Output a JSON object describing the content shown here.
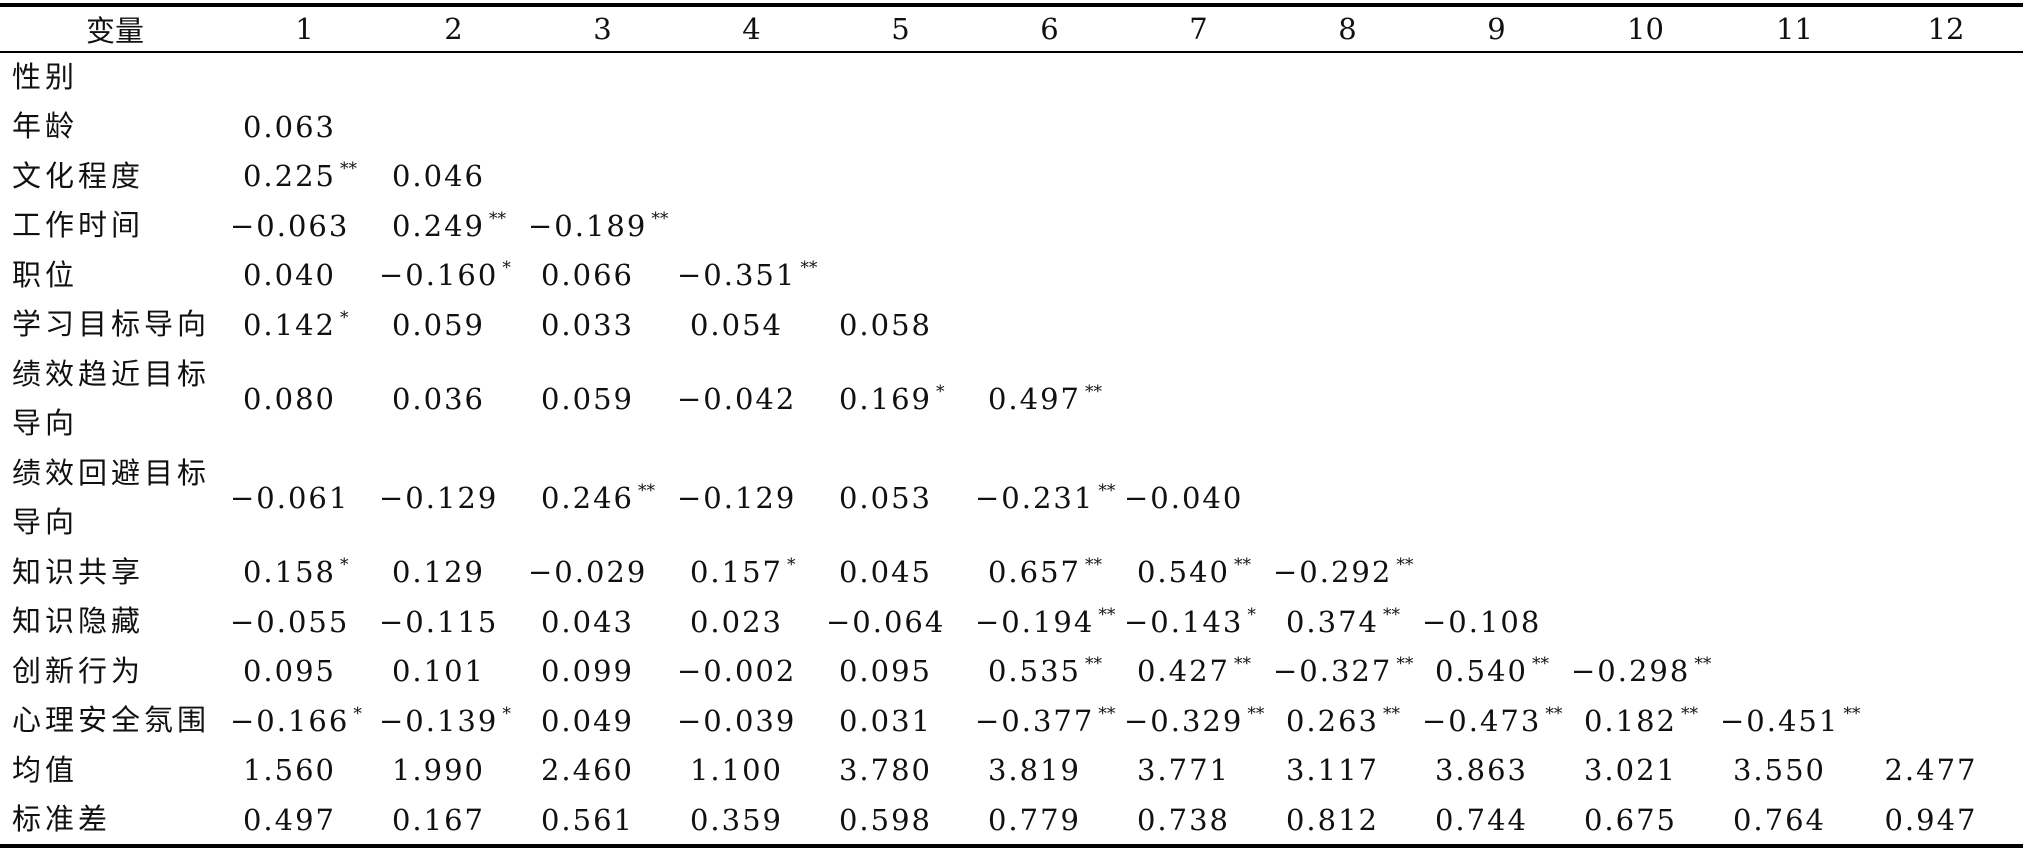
{
  "header": [
    "变量",
    "1",
    "2",
    "3",
    "4",
    "5",
    "6",
    "7",
    "8",
    "9",
    "10",
    "11",
    "12"
  ],
  "rows": [
    {
      "label": "性别",
      "cells": []
    },
    {
      "label": "年龄",
      "cells": [
        {
          "v": "0.063",
          "s": ""
        }
      ]
    },
    {
      "label": "文化程度",
      "cells": [
        {
          "v": "0.225",
          "s": "**"
        },
        {
          "v": "0.046",
          "s": ""
        }
      ]
    },
    {
      "label": "工作时间",
      "cells": [
        {
          "v": "−0.063",
          "s": ""
        },
        {
          "v": "0.249",
          "s": "**"
        },
        {
          "v": "−0.189",
          "s": "**"
        }
      ]
    },
    {
      "label": "职位",
      "cells": [
        {
          "v": "0.040",
          "s": ""
        },
        {
          "v": "−0.160",
          "s": "*"
        },
        {
          "v": "0.066",
          "s": ""
        },
        {
          "v": "−0.351",
          "s": "**"
        }
      ]
    },
    {
      "label": "学习目标导向",
      "cells": [
        {
          "v": "0.142",
          "s": "*"
        },
        {
          "v": "0.059",
          "s": ""
        },
        {
          "v": "0.033",
          "s": ""
        },
        {
          "v": "0.054",
          "s": ""
        },
        {
          "v": "0.058",
          "s": ""
        }
      ]
    },
    {
      "label": "绩效趋近目标导向",
      "tall": true,
      "cells": [
        {
          "v": "0.080",
          "s": ""
        },
        {
          "v": "0.036",
          "s": ""
        },
        {
          "v": "0.059",
          "s": ""
        },
        {
          "v": "−0.042",
          "s": ""
        },
        {
          "v": "0.169",
          "s": "*"
        },
        {
          "v": "0.497",
          "s": "**"
        }
      ]
    },
    {
      "label": "绩效回避目标导向",
      "tall": true,
      "cells": [
        {
          "v": "−0.061",
          "s": ""
        },
        {
          "v": "−0.129",
          "s": ""
        },
        {
          "v": "0.246",
          "s": "**"
        },
        {
          "v": "−0.129",
          "s": ""
        },
        {
          "v": "0.053",
          "s": ""
        },
        {
          "v": "−0.231",
          "s": "**"
        },
        {
          "v": "−0.040",
          "s": ""
        }
      ]
    },
    {
      "label": "知识共享",
      "cells": [
        {
          "v": "0.158",
          "s": "*"
        },
        {
          "v": "0.129",
          "s": ""
        },
        {
          "v": "−0.029",
          "s": ""
        },
        {
          "v": "0.157",
          "s": "*"
        },
        {
          "v": "0.045",
          "s": ""
        },
        {
          "v": "0.657",
          "s": "**"
        },
        {
          "v": "0.540",
          "s": "**"
        },
        {
          "v": "−0.292",
          "s": "**"
        }
      ]
    },
    {
      "label": "知识隐藏",
      "cells": [
        {
          "v": "−0.055",
          "s": ""
        },
        {
          "v": "−0.115",
          "s": ""
        },
        {
          "v": "0.043",
          "s": ""
        },
        {
          "v": "0.023",
          "s": ""
        },
        {
          "v": "−0.064",
          "s": ""
        },
        {
          "v": "−0.194",
          "s": "**"
        },
        {
          "v": "−0.143",
          "s": "*"
        },
        {
          "v": "0.374",
          "s": "**"
        },
        {
          "v": "−0.108",
          "s": ""
        }
      ]
    },
    {
      "label": "创新行为",
      "cells": [
        {
          "v": "0.095",
          "s": ""
        },
        {
          "v": "0.101",
          "s": ""
        },
        {
          "v": "0.099",
          "s": ""
        },
        {
          "v": "−0.002",
          "s": ""
        },
        {
          "v": "0.095",
          "s": ""
        },
        {
          "v": "0.535",
          "s": "**"
        },
        {
          "v": "0.427",
          "s": "**"
        },
        {
          "v": "−0.327",
          "s": "**"
        },
        {
          "v": "0.540",
          "s": "**"
        },
        {
          "v": "−0.298",
          "s": "**"
        }
      ]
    },
    {
      "label": "心理安全氛围",
      "cells": [
        {
          "v": "−0.166",
          "s": "*"
        },
        {
          "v": "−0.139",
          "s": "*"
        },
        {
          "v": "0.049",
          "s": ""
        },
        {
          "v": "−0.039",
          "s": ""
        },
        {
          "v": "0.031",
          "s": ""
        },
        {
          "v": "−0.377",
          "s": "**"
        },
        {
          "v": "−0.329",
          "s": "**"
        },
        {
          "v": "0.263",
          "s": "**"
        },
        {
          "v": "−0.473",
          "s": "**"
        },
        {
          "v": "0.182",
          "s": "**"
        },
        {
          "v": "−0.451",
          "s": "**"
        }
      ]
    },
    {
      "label": "均值",
      "cells": [
        {
          "v": "1.560",
          "s": ""
        },
        {
          "v": "1.990",
          "s": ""
        },
        {
          "v": "2.460",
          "s": ""
        },
        {
          "v": "1.100",
          "s": ""
        },
        {
          "v": "3.780",
          "s": ""
        },
        {
          "v": "3.819",
          "s": ""
        },
        {
          "v": "3.771",
          "s": ""
        },
        {
          "v": "3.117",
          "s": ""
        },
        {
          "v": "3.863",
          "s": ""
        },
        {
          "v": "3.021",
          "s": ""
        },
        {
          "v": "3.550",
          "s": ""
        },
        {
          "v": "2.477",
          "s": ""
        }
      ]
    },
    {
      "label": "标准差",
      "cells": [
        {
          "v": "0.497",
          "s": ""
        },
        {
          "v": "0.167",
          "s": ""
        },
        {
          "v": "0.561",
          "s": ""
        },
        {
          "v": "0.359",
          "s": ""
        },
        {
          "v": "0.598",
          "s": ""
        },
        {
          "v": "0.779",
          "s": ""
        },
        {
          "v": "0.738",
          "s": ""
        },
        {
          "v": "0.812",
          "s": ""
        },
        {
          "v": "0.744",
          "s": ""
        },
        {
          "v": "0.675",
          "s": ""
        },
        {
          "v": "0.764",
          "s": ""
        },
        {
          "v": "0.947",
          "s": ""
        }
      ]
    }
  ]
}
